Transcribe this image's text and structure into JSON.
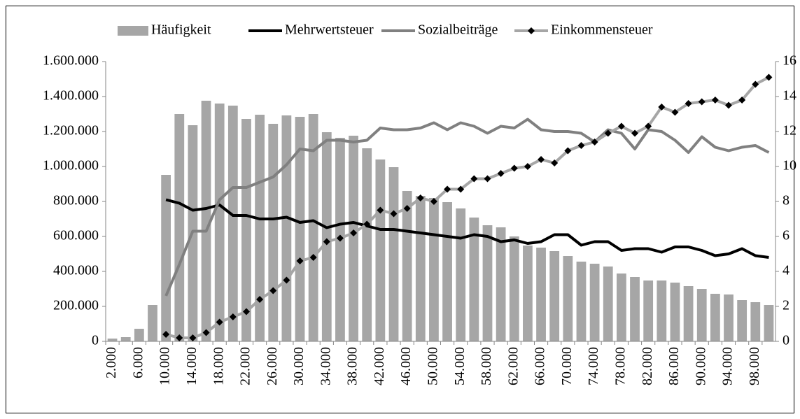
{
  "chart_data": {
    "type": "bar_line",
    "categories": [
      "2.000",
      null,
      "6.000",
      null,
      "10.000",
      null,
      "14.000",
      null,
      "18.000",
      null,
      "22.000",
      null,
      "26.000",
      null,
      "30.000",
      null,
      "34.000",
      null,
      "38.000",
      null,
      "42.000",
      null,
      "46.000",
      null,
      "50.000",
      null,
      "54.000",
      null,
      "58.000",
      null,
      "62.000",
      null,
      "66.000",
      null,
      "70.000",
      null,
      "74.000",
      null,
      "78.000",
      null,
      "82.000",
      null,
      "86.000",
      null,
      "90.000",
      null,
      "94.000",
      null,
      "98.000",
      null
    ],
    "series": [
      {
        "name": "Häufigkeit",
        "kind": "bar",
        "color": "#a6a6a6",
        "values": [
          16000,
          24000,
          72000,
          208000,
          952000,
          1300000,
          1236000,
          1376000,
          1360000,
          1348000,
          1272000,
          1296000,
          1244000,
          1292000,
          1284000,
          1300000,
          1196000,
          1164000,
          1176000,
          1104000,
          1040000,
          996000,
          860000,
          832000,
          820000,
          796000,
          760000,
          708000,
          664000,
          652000,
          600000,
          548000,
          536000,
          516000,
          488000,
          456000,
          444000,
          428000,
          388000,
          368000,
          348000,
          348000,
          336000,
          316000,
          300000,
          272000,
          268000,
          236000,
          224000,
          208000
        ]
      },
      {
        "name": "Mehrwertsteuer",
        "kind": "line",
        "axis": "y2",
        "color": "#000000",
        "values": [
          null,
          null,
          null,
          null,
          8.1,
          7.9,
          7.5,
          7.6,
          7.8,
          7.2,
          7.2,
          7.0,
          7.0,
          7.1,
          6.8,
          6.9,
          6.5,
          6.7,
          6.8,
          6.6,
          6.4,
          6.4,
          6.3,
          6.2,
          6.1,
          6.0,
          5.9,
          6.1,
          6.0,
          5.7,
          5.8,
          5.6,
          5.7,
          6.1,
          6.1,
          5.5,
          5.7,
          5.7,
          5.2,
          5.3,
          5.3,
          5.1,
          5.4,
          5.4,
          5.2,
          4.9,
          5.0,
          5.3,
          4.9,
          4.8
        ]
      },
      {
        "name": "Sozialbeiträge",
        "kind": "line",
        "axis": "y2",
        "color": "#808080",
        "values": [
          null,
          null,
          null,
          null,
          2.6,
          4.4,
          6.3,
          6.3,
          8.1,
          8.8,
          8.8,
          9.1,
          9.4,
          10.1,
          11.0,
          10.9,
          11.5,
          11.5,
          11.4,
          11.5,
          12.2,
          12.1,
          12.1,
          12.2,
          12.5,
          12.1,
          12.5,
          12.3,
          11.9,
          12.3,
          12.2,
          12.7,
          12.1,
          12.0,
          12.0,
          11.9,
          11.4,
          12.1,
          11.9,
          11.0,
          12.1,
          12.0,
          11.5,
          10.8,
          11.7,
          11.1,
          10.9,
          11.1,
          11.2,
          10.8
        ]
      },
      {
        "name": "Einkommensteuer",
        "kind": "line",
        "axis": "y2",
        "color": "#a6a6a6",
        "marker": "diamond",
        "marker_color": "#000000",
        "values": [
          null,
          null,
          null,
          null,
          0.4,
          0.2,
          0.2,
          0.5,
          1.1,
          1.4,
          1.7,
          2.4,
          2.9,
          3.5,
          4.6,
          4.8,
          5.7,
          5.9,
          6.2,
          6.7,
          7.5,
          7.3,
          7.6,
          8.2,
          8.0,
          8.7,
          8.7,
          9.3,
          9.3,
          9.6,
          9.9,
          10.0,
          10.4,
          10.2,
          10.9,
          11.2,
          11.4,
          11.9,
          12.3,
          11.9,
          12.3,
          13.4,
          13.1,
          13.6,
          13.7,
          13.8,
          13.5,
          13.8,
          14.7,
          15.1
        ]
      }
    ],
    "ylim": [
      0,
      1600000
    ],
    "yticks": [
      0,
      {
        "value": 200000,
        "label": "200.000"
      },
      {
        "value": 400000,
        "label": "400.000"
      },
      {
        "value": 600000,
        "label": "600.000"
      },
      {
        "value": 800000,
        "label": "800.000"
      },
      {
        "value": 1000000,
        "label": "1.000.000"
      },
      {
        "value": 1200000,
        "label": "1.200.000"
      },
      {
        "value": 1400000,
        "label": "1.400.000"
      },
      {
        "value": 1600000,
        "label": "1.600.000"
      }
    ],
    "y2lim": [
      0,
      16
    ],
    "y2ticks": [
      0,
      2,
      4,
      6,
      8,
      10,
      12,
      14,
      16
    ],
    "legend": "top",
    "grid": false
  }
}
